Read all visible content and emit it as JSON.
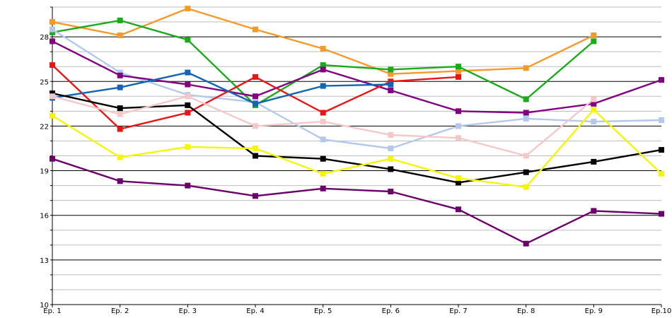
{
  "chart_data": {
    "type": "line",
    "categories": [
      "Ep. 1",
      "Ep. 2",
      "Ep. 3",
      "Ep. 4",
      "Ep. 5",
      "Ep. 6",
      "Ep. 7",
      "Ep. 8",
      "Ep. 9",
      "Ep.10"
    ],
    "ylim": [
      10,
      30
    ],
    "yticks": [
      10,
      13,
      16,
      19,
      22,
      25,
      28
    ],
    "minor_step": 1,
    "grid": true,
    "legend": "none",
    "series": [
      {
        "color": "#f39a2b",
        "values": [
          29.0,
          28.1,
          29.9,
          28.5,
          27.2,
          25.5,
          25.7,
          25.9,
          28.1,
          null
        ]
      },
      {
        "color": "#1aaa1a",
        "values": [
          28.3,
          29.1,
          27.8,
          23.4,
          26.1,
          25.8,
          26.0,
          23.8,
          27.7,
          null
        ]
      },
      {
        "color": "#b4c8ec",
        "values": [
          28.5,
          25.6,
          24.1,
          23.6,
          21.1,
          20.5,
          22.0,
          22.5,
          22.3,
          22.4
        ]
      },
      {
        "color": "#800080",
        "values": [
          27.7,
          25.4,
          24.8,
          24.0,
          25.8,
          24.4,
          23.0,
          22.9,
          23.5,
          25.1
        ]
      },
      {
        "color": "#e61717",
        "values": [
          26.1,
          21.8,
          22.9,
          25.3,
          22.9,
          25.0,
          25.3,
          null,
          null,
          null
        ]
      },
      {
        "color": "#1464b4",
        "values": [
          23.9,
          24.6,
          25.6,
          23.5,
          24.7,
          24.8,
          null,
          null,
          null,
          null
        ]
      },
      {
        "color": "#000000",
        "values": [
          24.2,
          23.2,
          23.4,
          20.0,
          19.8,
          19.1,
          18.2,
          18.9,
          19.6,
          20.4
        ]
      },
      {
        "color": "#f4c8c8",
        "values": [
          24.0,
          22.8,
          24.0,
          22.0,
          22.3,
          21.4,
          21.2,
          20.0,
          23.8,
          null
        ]
      },
      {
        "color": "#f5f50a",
        "values": [
          22.7,
          19.9,
          20.6,
          20.5,
          18.8,
          19.8,
          18.5,
          17.9,
          23.1,
          18.8
        ]
      },
      {
        "color": "#6a006a",
        "values": [
          19.8,
          18.3,
          18.0,
          17.3,
          17.8,
          17.6,
          16.4,
          14.1,
          16.3,
          16.1
        ]
      }
    ]
  }
}
